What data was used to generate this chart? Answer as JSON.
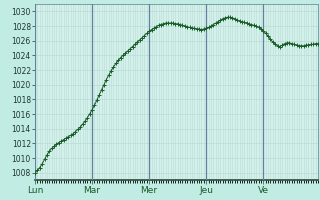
{
  "background_color": "#c0ece4",
  "plot_bg_color": "#d4f0ea",
  "grid_color": "#b8dcd6",
  "line_color": "#1a5c2a",
  "marker_color": "#1a5c2a",
  "vline_color": "#6080a0",
  "ylim": [
    1007,
    1031
  ],
  "yticks": [
    1008,
    1010,
    1012,
    1014,
    1016,
    1018,
    1020,
    1022,
    1024,
    1026,
    1028,
    1030
  ],
  "xtick_labels": [
    "Lun",
    "Mar",
    "Mer",
    "Jeu",
    "Ve"
  ],
  "xtick_positions": [
    0,
    24,
    48,
    72,
    96
  ],
  "day_lines": [
    0,
    24,
    48,
    72,
    96
  ],
  "pressure_values": [
    1008.0,
    1008.3,
    1008.7,
    1009.2,
    1009.8,
    1010.4,
    1010.9,
    1011.3,
    1011.6,
    1011.9,
    1012.1,
    1012.3,
    1012.5,
    1012.7,
    1012.9,
    1013.1,
    1013.3,
    1013.6,
    1013.9,
    1014.2,
    1014.6,
    1015.0,
    1015.5,
    1016.0,
    1016.6,
    1017.2,
    1017.9,
    1018.6,
    1019.3,
    1020.0,
    1020.7,
    1021.3,
    1021.9,
    1022.4,
    1022.9,
    1023.3,
    1023.7,
    1024.0,
    1024.3,
    1024.6,
    1024.9,
    1025.2,
    1025.5,
    1025.8,
    1026.1,
    1026.4,
    1026.7,
    1027.0,
    1027.3,
    1027.5,
    1027.7,
    1027.9,
    1028.1,
    1028.2,
    1028.3,
    1028.4,
    1028.4,
    1028.4,
    1028.4,
    1028.3,
    1028.3,
    1028.2,
    1028.1,
    1028.0,
    1027.9,
    1027.8,
    1027.7,
    1027.7,
    1027.6,
    1027.6,
    1027.5,
    1027.6,
    1027.7,
    1027.8,
    1028.0,
    1028.2,
    1028.4,
    1028.6,
    1028.8,
    1029.0,
    1029.1,
    1029.2,
    1029.2,
    1029.1,
    1029.0,
    1028.8,
    1028.7,
    1028.6,
    1028.5,
    1028.4,
    1028.3,
    1028.2,
    1028.1,
    1028.0,
    1027.8,
    1027.6,
    1027.3,
    1027.0,
    1026.6,
    1026.2,
    1025.8,
    1025.5,
    1025.3,
    1025.2,
    1025.4,
    1025.6,
    1025.7,
    1025.7,
    1025.6,
    1025.5,
    1025.4,
    1025.3,
    1025.3,
    1025.3,
    1025.4,
    1025.4,
    1025.5,
    1025.5,
    1025.6,
    1025.6
  ]
}
